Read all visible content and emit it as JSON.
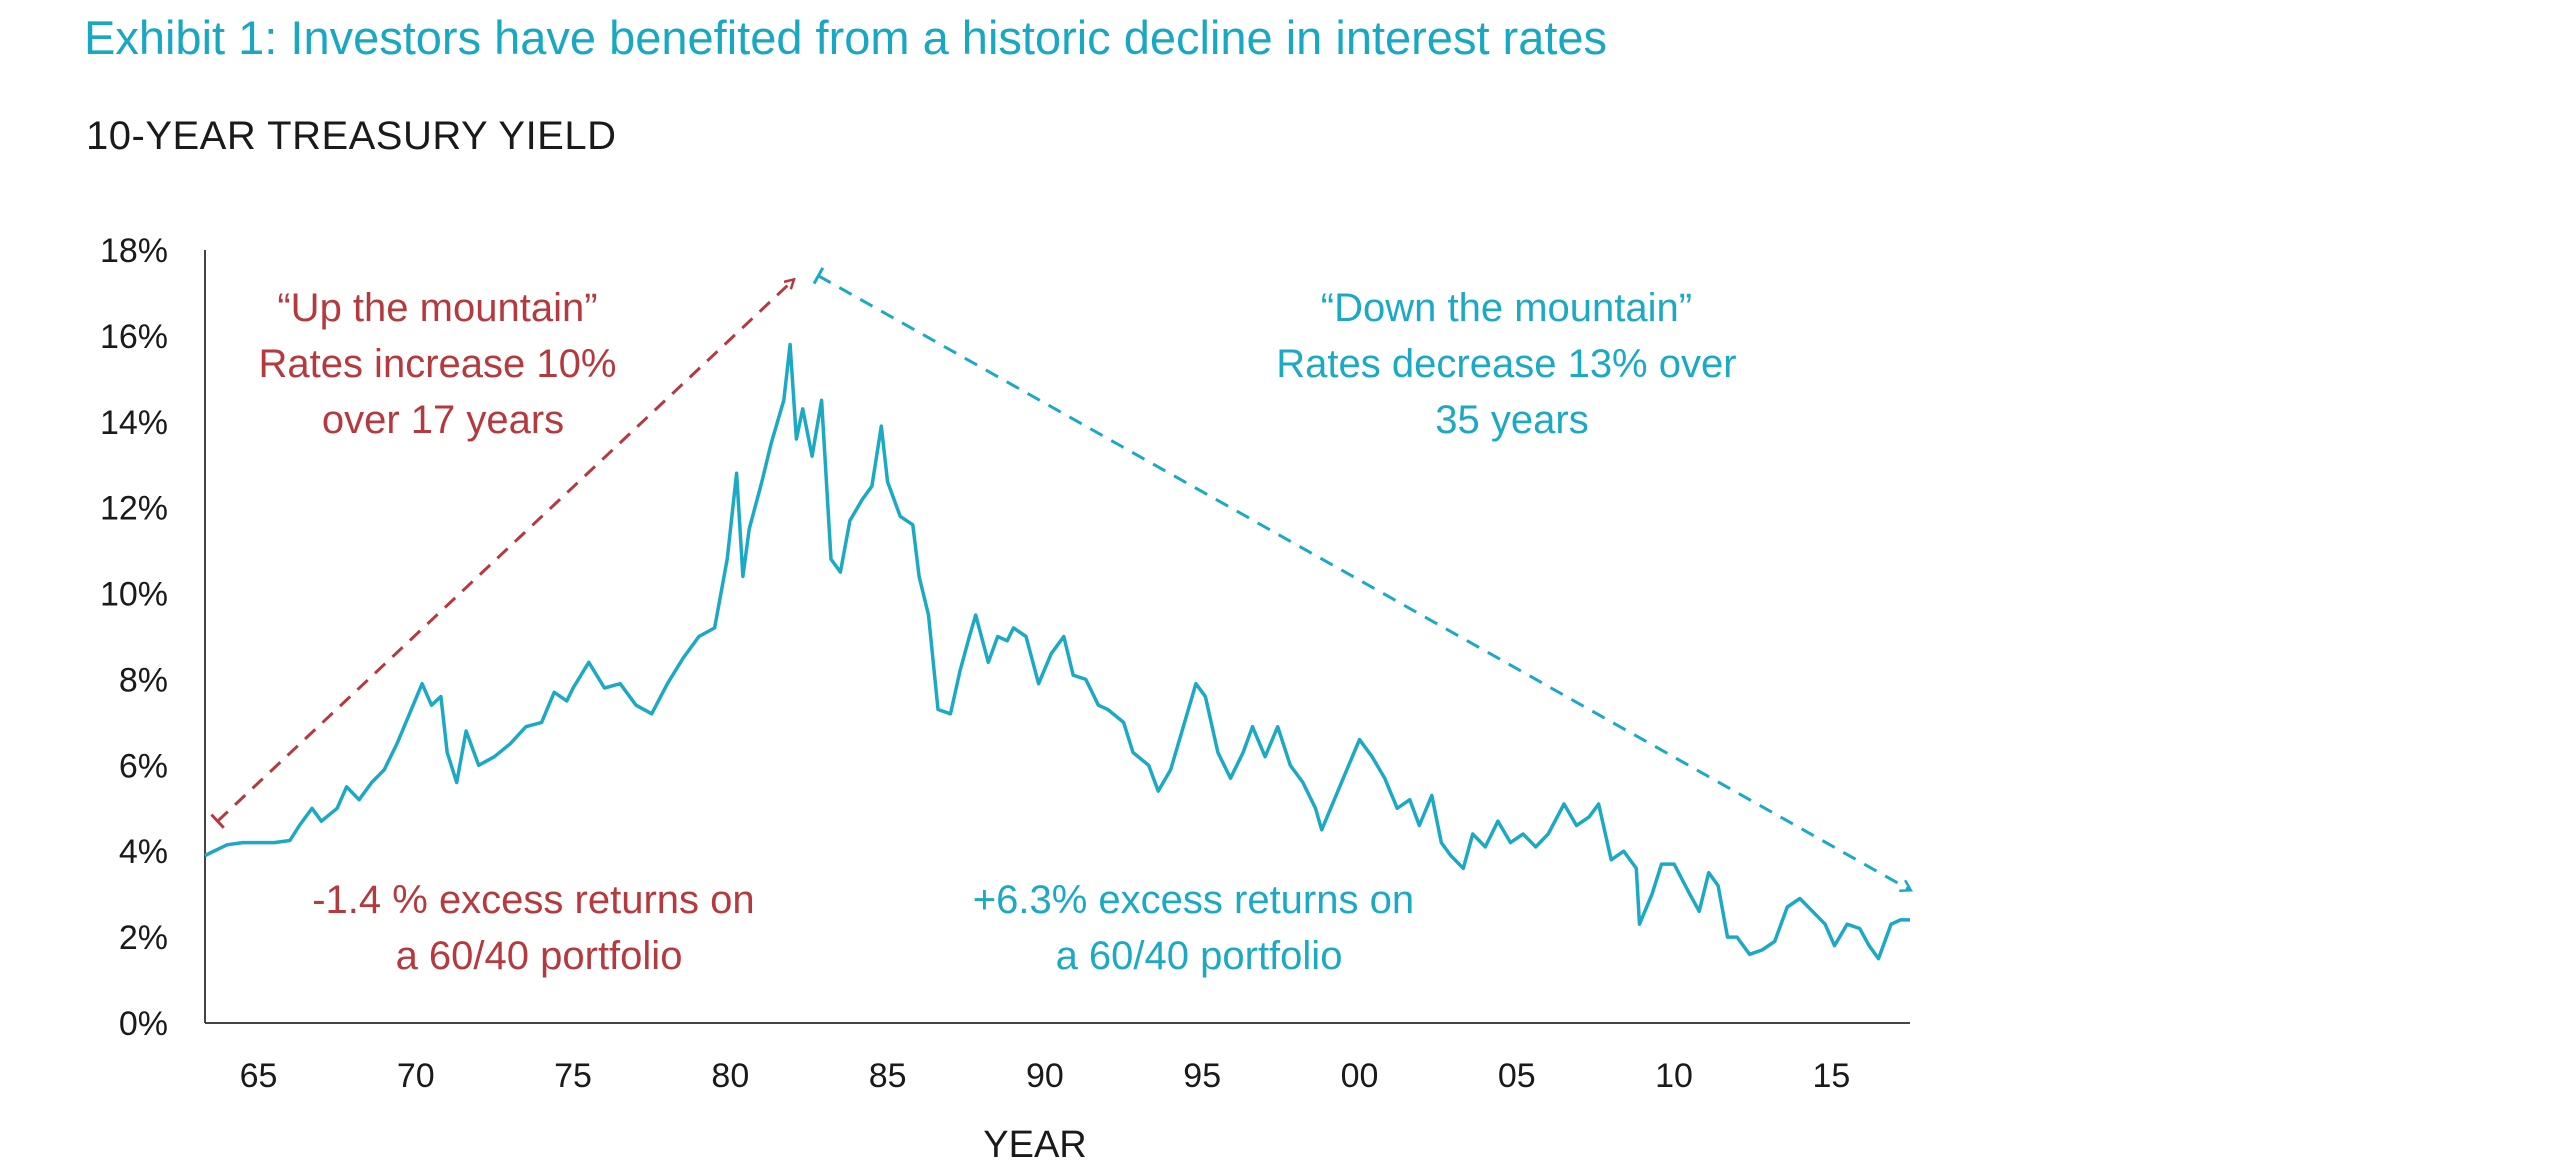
{
  "colors": {
    "series": "#1ba9c4",
    "up_annotation": "#b53a3f",
    "down_annotation": "#1ba9c4",
    "exhibit_title": "#19a8c2",
    "axis": "#444444",
    "text": "#1a1a1a"
  },
  "header": {
    "exhibit_title": "Exhibit 1: Investors have benefited from a historic decline in interest rates"
  },
  "chart_data": {
    "type": "line",
    "title": "10-YEAR TREASURY YIELD",
    "xlabel": "YEAR",
    "ylabel": "",
    "ylim": [
      0,
      18
    ],
    "xlim": [
      1963.3,
      2017.5
    ],
    "grid": false,
    "legend": "none",
    "y_ticks": [
      {
        "value": 0,
        "label": "0%"
      },
      {
        "value": 2,
        "label": "2%"
      },
      {
        "value": 4,
        "label": "4%"
      },
      {
        "value": 6,
        "label": "6%"
      },
      {
        "value": 8,
        "label": "8%"
      },
      {
        "value": 10,
        "label": "10%"
      },
      {
        "value": 12,
        "label": "12%"
      },
      {
        "value": 14,
        "label": "14%"
      },
      {
        "value": 16,
        "label": "16%"
      },
      {
        "value": 18,
        "label": "18%"
      }
    ],
    "x_ticks": [
      {
        "value": 1965,
        "label": "65"
      },
      {
        "value": 1970,
        "label": "70"
      },
      {
        "value": 1975,
        "label": "75"
      },
      {
        "value": 1980,
        "label": "80"
      },
      {
        "value": 1985,
        "label": "85"
      },
      {
        "value": 1990,
        "label": "90"
      },
      {
        "value": 1995,
        "label": "95"
      },
      {
        "value": 2000,
        "label": "00"
      },
      {
        "value": 2005,
        "label": "05"
      },
      {
        "value": 2010,
        "label": "10"
      },
      {
        "value": 2015,
        "label": "15"
      }
    ],
    "series": [
      {
        "name": "",
        "points": [
          [
            1963.3,
            3.9
          ],
          [
            1964.0,
            4.15
          ],
          [
            1964.5,
            4.2
          ],
          [
            1965.0,
            4.2
          ],
          [
            1965.5,
            4.2
          ],
          [
            1966.0,
            4.25
          ],
          [
            1966.3,
            4.6
          ],
          [
            1966.7,
            5.0
          ],
          [
            1967.0,
            4.7
          ],
          [
            1967.5,
            5.0
          ],
          [
            1967.8,
            5.5
          ],
          [
            1968.2,
            5.2
          ],
          [
            1968.6,
            5.6
          ],
          [
            1969.0,
            5.9
          ],
          [
            1969.4,
            6.5
          ],
          [
            1969.8,
            7.2
          ],
          [
            1970.2,
            7.9
          ],
          [
            1970.5,
            7.4
          ],
          [
            1970.8,
            7.6
          ],
          [
            1971.0,
            6.3
          ],
          [
            1971.3,
            5.6
          ],
          [
            1971.6,
            6.8
          ],
          [
            1972.0,
            6.0
          ],
          [
            1972.5,
            6.2
          ],
          [
            1973.0,
            6.5
          ],
          [
            1973.5,
            6.9
          ],
          [
            1974.0,
            7.0
          ],
          [
            1974.4,
            7.7
          ],
          [
            1974.8,
            7.5
          ],
          [
            1975.0,
            7.8
          ],
          [
            1975.5,
            8.4
          ],
          [
            1976.0,
            7.8
          ],
          [
            1976.5,
            7.9
          ],
          [
            1977.0,
            7.4
          ],
          [
            1977.5,
            7.2
          ],
          [
            1978.0,
            7.9
          ],
          [
            1978.5,
            8.5
          ],
          [
            1979.0,
            9.0
          ],
          [
            1979.5,
            9.2
          ],
          [
            1979.9,
            10.8
          ],
          [
            1980.2,
            12.8
          ],
          [
            1980.4,
            10.4
          ],
          [
            1980.6,
            11.5
          ],
          [
            1981.0,
            12.6
          ],
          [
            1981.3,
            13.5
          ],
          [
            1981.7,
            14.5
          ],
          [
            1981.9,
            15.8
          ],
          [
            1982.1,
            13.6
          ],
          [
            1982.3,
            14.3
          ],
          [
            1982.6,
            13.2
          ],
          [
            1982.9,
            14.5
          ],
          [
            1983.2,
            10.8
          ],
          [
            1983.5,
            10.5
          ],
          [
            1983.8,
            11.7
          ],
          [
            1984.2,
            12.2
          ],
          [
            1984.5,
            12.5
          ],
          [
            1984.8,
            13.9
          ],
          [
            1985.0,
            12.6
          ],
          [
            1985.4,
            11.8
          ],
          [
            1985.8,
            11.6
          ],
          [
            1986.0,
            10.4
          ],
          [
            1986.3,
            9.5
          ],
          [
            1986.6,
            7.3
          ],
          [
            1987.0,
            7.2
          ],
          [
            1987.3,
            8.2
          ],
          [
            1987.6,
            9.0
          ],
          [
            1987.8,
            9.5
          ],
          [
            1988.2,
            8.4
          ],
          [
            1988.5,
            9.0
          ],
          [
            1988.8,
            8.9
          ],
          [
            1989.0,
            9.2
          ],
          [
            1989.4,
            9.0
          ],
          [
            1989.8,
            7.9
          ],
          [
            1990.2,
            8.6
          ],
          [
            1990.6,
            9.0
          ],
          [
            1990.9,
            8.1
          ],
          [
            1991.3,
            8.0
          ],
          [
            1991.7,
            7.4
          ],
          [
            1992.0,
            7.3
          ],
          [
            1992.5,
            7.0
          ],
          [
            1992.8,
            6.3
          ],
          [
            1993.3,
            6.0
          ],
          [
            1993.6,
            5.4
          ],
          [
            1994.0,
            5.9
          ],
          [
            1994.4,
            6.9
          ],
          [
            1994.8,
            7.9
          ],
          [
            1995.1,
            7.6
          ],
          [
            1995.5,
            6.3
          ],
          [
            1995.9,
            5.7
          ],
          [
            1996.3,
            6.3
          ],
          [
            1996.6,
            6.9
          ],
          [
            1997.0,
            6.2
          ],
          [
            1997.4,
            6.9
          ],
          [
            1997.8,
            6.0
          ],
          [
            1998.2,
            5.6
          ],
          [
            1998.6,
            5.0
          ],
          [
            1998.8,
            4.5
          ],
          [
            1999.2,
            5.2
          ],
          [
            1999.6,
            5.9
          ],
          [
            2000.0,
            6.6
          ],
          [
            2000.4,
            6.2
          ],
          [
            2000.8,
            5.7
          ],
          [
            2001.2,
            5.0
          ],
          [
            2001.6,
            5.2
          ],
          [
            2001.9,
            4.6
          ],
          [
            2002.3,
            5.3
          ],
          [
            2002.6,
            4.2
          ],
          [
            2002.9,
            3.9
          ],
          [
            2003.3,
            3.6
          ],
          [
            2003.6,
            4.4
          ],
          [
            2004.0,
            4.1
          ],
          [
            2004.4,
            4.7
          ],
          [
            2004.8,
            4.2
          ],
          [
            2005.2,
            4.4
          ],
          [
            2005.6,
            4.1
          ],
          [
            2006.0,
            4.4
          ],
          [
            2006.5,
            5.1
          ],
          [
            2006.9,
            4.6
          ],
          [
            2007.3,
            4.8
          ],
          [
            2007.6,
            5.1
          ],
          [
            2008.0,
            3.8
          ],
          [
            2008.4,
            4.0
          ],
          [
            2008.8,
            3.6
          ],
          [
            2008.9,
            2.3
          ],
          [
            2009.3,
            3.0
          ],
          [
            2009.6,
            3.7
          ],
          [
            2010.0,
            3.7
          ],
          [
            2010.5,
            3.0
          ],
          [
            2010.8,
            2.6
          ],
          [
            2011.1,
            3.5
          ],
          [
            2011.4,
            3.2
          ],
          [
            2011.7,
            2.0
          ],
          [
            2012.0,
            2.0
          ],
          [
            2012.4,
            1.6
          ],
          [
            2012.8,
            1.7
          ],
          [
            2013.2,
            1.9
          ],
          [
            2013.6,
            2.7
          ],
          [
            2014.0,
            2.9
          ],
          [
            2014.4,
            2.6
          ],
          [
            2014.8,
            2.3
          ],
          [
            2015.1,
            1.8
          ],
          [
            2015.5,
            2.3
          ],
          [
            2015.9,
            2.2
          ],
          [
            2016.2,
            1.8
          ],
          [
            2016.5,
            1.5
          ],
          [
            2016.9,
            2.3
          ],
          [
            2017.2,
            2.4
          ],
          [
            2017.5,
            2.4
          ]
        ]
      }
    ],
    "annotations": {
      "up_arrow": {
        "from": [
          1963.7,
          4.7
        ],
        "to": [
          1982.0,
          17.3
        ]
      },
      "down_arrow": {
        "from": [
          1982.8,
          17.4
        ],
        "to": [
          2017.5,
          3.1
        ]
      },
      "up_heading": {
        "lines": [
          "“Up the mountain”",
          "Rates increase 10%",
          "over 17 years"
        ]
      },
      "down_heading": {
        "lines": [
          "“Down the mountain”",
          "Rates decrease 13% over",
          "35 years"
        ]
      },
      "up_returns": {
        "lines": [
          "-1.4 % excess returns on",
          "a 60/40 portfolio"
        ]
      },
      "down_returns": {
        "lines": [
          "+6.3% excess returns on",
          "a 60/40 portfolio"
        ]
      }
    }
  }
}
